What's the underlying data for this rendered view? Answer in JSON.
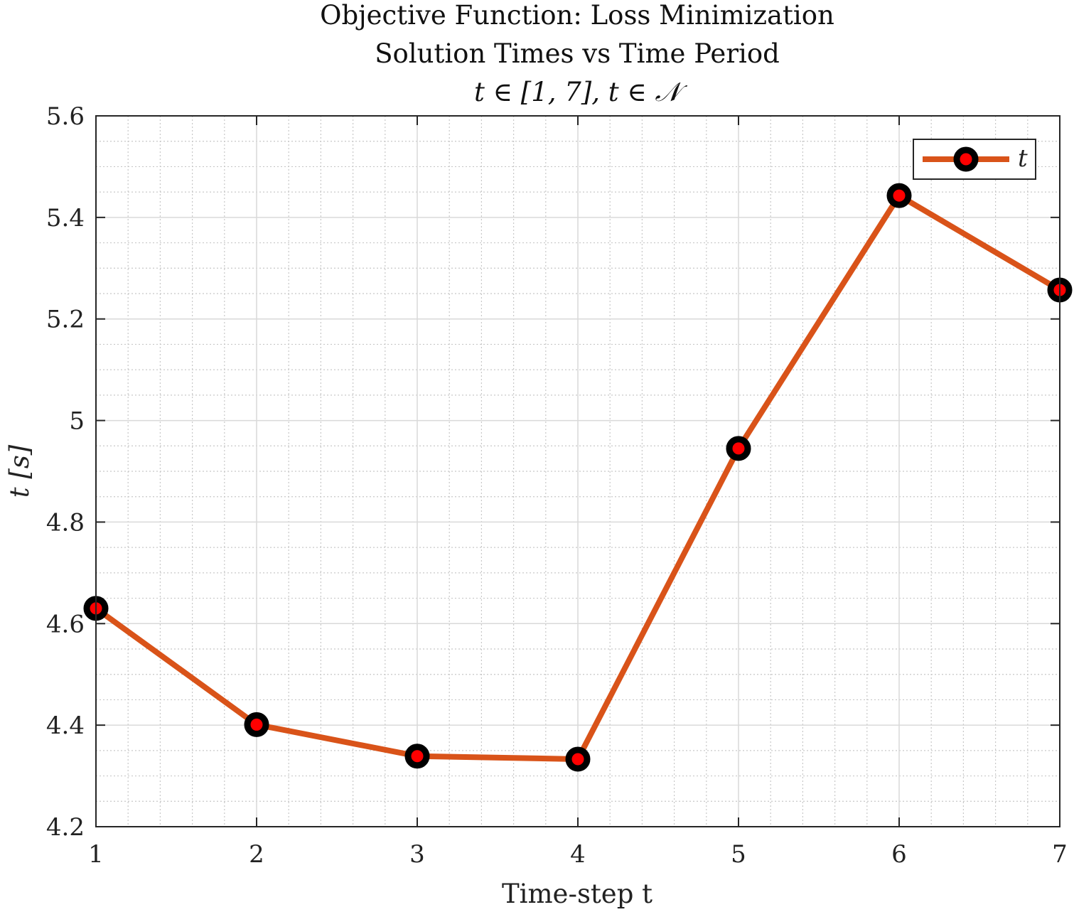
{
  "chart_data": {
    "type": "line",
    "title_lines": [
      "Objective Function: Loss Minimization",
      "Solution Times vs Time Period",
      "t ∈ [1, 7], t ∈ 𝒩"
    ],
    "xlabel": "Time-step t",
    "ylabel": "t [s]",
    "xlim": [
      1,
      7
    ],
    "ylim": [
      4.2,
      5.6
    ],
    "x_ticks": [
      "1",
      "2",
      "3",
      "4",
      "5",
      "6",
      "7"
    ],
    "y_ticks": [
      "4.2",
      "4.4",
      "4.6",
      "4.8",
      "5",
      "5.2",
      "5.4",
      "5.6"
    ],
    "grid": true,
    "minor_grid": true,
    "legend_position": "top-right",
    "series": [
      {
        "name": "t",
        "x": [
          1,
          2,
          3,
          4,
          5,
          6,
          7
        ],
        "values": [
          4.63,
          4.401,
          4.339,
          4.333,
          4.945,
          5.443,
          5.257
        ],
        "line_color": "#d95319",
        "marker_edge_color": "#000000",
        "marker_face_color": "#ff0000"
      }
    ]
  }
}
